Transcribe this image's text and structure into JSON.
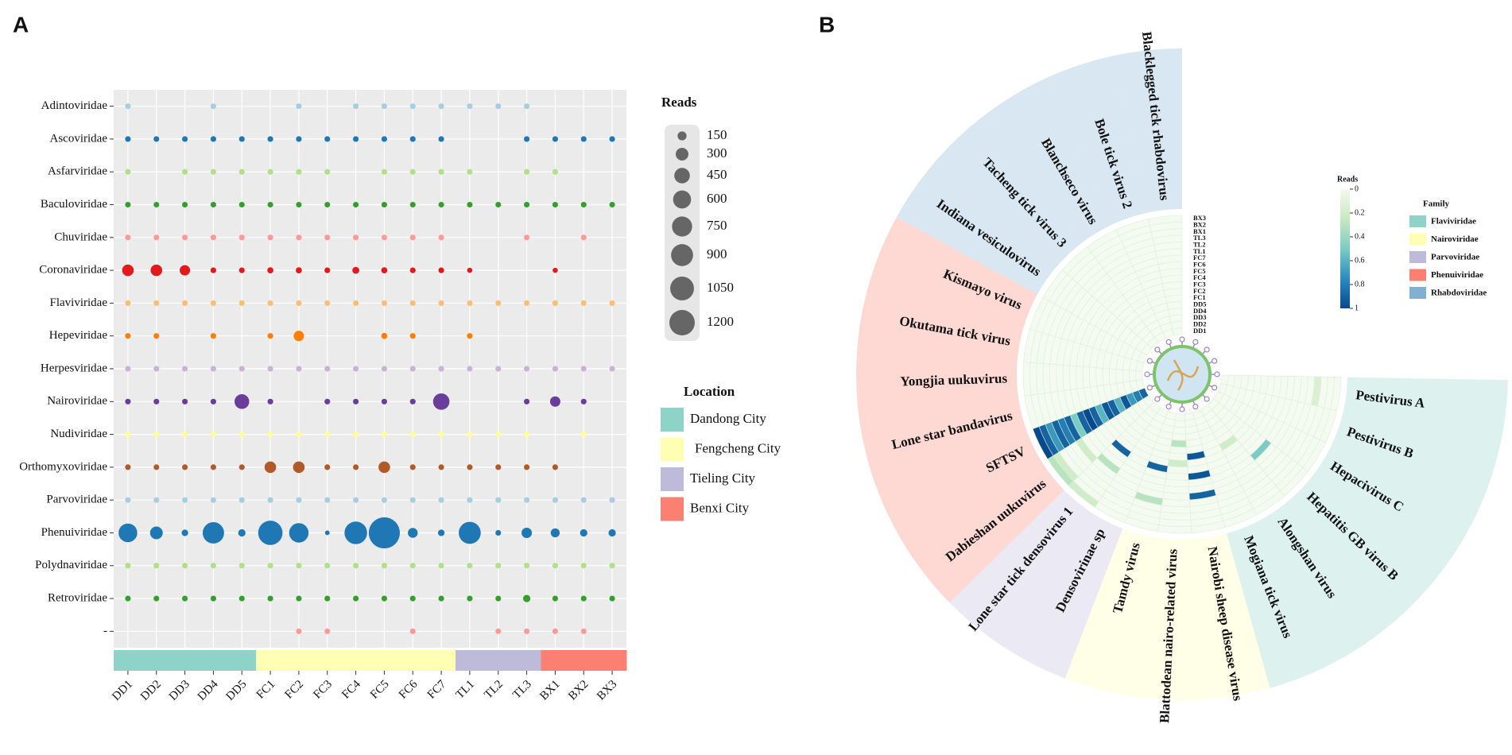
{
  "chart_data": [
    {
      "type": "bubble",
      "panel": "A",
      "y_categories": [
        "Adintoviridae",
        "Ascoviridae",
        "Asfarviridae",
        "Baculoviridae",
        "Chuviridae",
        "Coronaviridae",
        "Flaviviridae",
        "Hepeviridae",
        "Herpesviridae",
        "Nairoviridae",
        "Nudiviridae",
        "Orthomyxoviridae",
        "Parvoviridae",
        "Phenuiviridae",
        "Polydnaviridae",
        "Retroviridae",
        "-"
      ],
      "x_categories": [
        "DD1",
        "DD2",
        "DD3",
        "DD4",
        "DD5",
        "FC1",
        "FC2",
        "FC3",
        "FC4",
        "FC5",
        "FC6",
        "FC7",
        "TL1",
        "TL2",
        "TL3",
        "BX1",
        "BX2",
        "BX3"
      ],
      "colors": [
        "#a6cee3",
        "#1f78b4",
        "#b2df8a",
        "#33a02c",
        "#fb9a99",
        "#e31a1c",
        "#fdbf6f",
        "#ff7f00",
        "#cab2d6",
        "#6a3d9a",
        "#ffff99",
        "#b15928",
        "#a6cee3",
        "#1f78b4",
        "#b2df8a",
        "#33a02c",
        "#fb9a99"
      ],
      "values": [
        [
          60,
          null,
          null,
          60,
          null,
          null,
          60,
          null,
          60,
          60,
          60,
          60,
          60,
          60,
          60,
          null,
          null,
          null
        ],
        [
          60,
          60,
          60,
          60,
          60,
          60,
          60,
          60,
          60,
          60,
          60,
          60,
          null,
          null,
          60,
          60,
          60,
          60
        ],
        [
          60,
          null,
          60,
          60,
          60,
          60,
          60,
          60,
          null,
          60,
          60,
          60,
          60,
          null,
          60,
          60,
          null,
          null
        ],
        [
          60,
          60,
          60,
          60,
          60,
          60,
          60,
          60,
          60,
          60,
          60,
          60,
          60,
          60,
          60,
          60,
          60,
          60
        ],
        [
          60,
          60,
          60,
          60,
          60,
          60,
          60,
          60,
          60,
          60,
          60,
          60,
          null,
          null,
          60,
          null,
          60,
          null
        ],
        [
          250,
          250,
          200,
          60,
          60,
          70,
          70,
          60,
          90,
          70,
          60,
          60,
          50,
          null,
          null,
          50,
          null,
          null
        ],
        [
          60,
          60,
          60,
          60,
          60,
          60,
          60,
          60,
          60,
          60,
          60,
          60,
          60,
          60,
          60,
          60,
          60,
          60
        ],
        [
          60,
          60,
          null,
          60,
          null,
          60,
          200,
          null,
          null,
          70,
          60,
          null,
          60,
          null,
          null,
          null,
          null,
          null
        ],
        [
          60,
          60,
          60,
          60,
          60,
          60,
          60,
          60,
          60,
          60,
          60,
          60,
          60,
          60,
          60,
          60,
          60,
          60
        ],
        [
          60,
          60,
          60,
          60,
          400,
          60,
          null,
          60,
          60,
          60,
          60,
          500,
          null,
          null,
          60,
          200,
          60,
          null
        ],
        [
          60,
          60,
          60,
          60,
          60,
          60,
          60,
          60,
          60,
          60,
          60,
          60,
          60,
          60,
          60,
          null,
          60,
          null
        ],
        [
          60,
          60,
          60,
          60,
          60,
          250,
          250,
          60,
          60,
          250,
          60,
          60,
          60,
          60,
          60,
          60,
          null,
          null
        ],
        [
          60,
          60,
          60,
          60,
          60,
          60,
          60,
          60,
          60,
          60,
          60,
          60,
          60,
          60,
          60,
          60,
          60,
          60
        ],
        [
          650,
          300,
          80,
          850,
          100,
          1100,
          700,
          40,
          950,
          1800,
          180,
          80,
          900,
          60,
          200,
          150,
          100,
          100
        ],
        [
          60,
          60,
          60,
          60,
          60,
          60,
          60,
          60,
          60,
          60,
          60,
          60,
          60,
          60,
          60,
          60,
          60,
          60
        ],
        [
          60,
          60,
          60,
          60,
          60,
          60,
          60,
          60,
          60,
          60,
          60,
          60,
          60,
          60,
          100,
          60,
          60,
          60
        ],
        [
          null,
          null,
          null,
          null,
          null,
          null,
          60,
          60,
          null,
          null,
          60,
          null,
          null,
          60,
          60,
          60,
          60,
          null
        ]
      ],
      "size_legend_title": "Reads",
      "size_legend": [
        150,
        300,
        450,
        600,
        750,
        900,
        1050,
        1200
      ],
      "size_legend_color": "#666666",
      "location_title": "Location",
      "locations": [
        {
          "name": "Dandong City",
          "color": "#8dd3c7"
        },
        {
          "name": "Fengcheng City",
          "color": "#ffffb3"
        },
        {
          "name": "Tieling City",
          "color": "#bebada"
        },
        {
          "name": "Benxi City",
          "color": "#fb8072"
        }
      ],
      "sample_locations": [
        "Dandong City",
        "Dandong City",
        "Dandong City",
        "Dandong City",
        "Dandong City",
        "Fengcheng City",
        "Fengcheng City",
        "Fengcheng City",
        "Fengcheng City",
        "Fengcheng City",
        "Fengcheng City",
        "Fengcheng City",
        "Tieling City",
        "Tieling City",
        "Tieling City",
        "Benxi City",
        "Benxi City",
        "Benxi City"
      ]
    },
    {
      "type": "circular_heatmap",
      "panel": "B",
      "samples": [
        "DD1",
        "DD2",
        "DD3",
        "DD4",
        "DD5",
        "FC1",
        "FC2",
        "FC3",
        "FC4",
        "FC5",
        "FC6",
        "FC7",
        "TL1",
        "TL2",
        "TL3",
        "BX1",
        "BX2",
        "BX3"
      ],
      "families": [
        {
          "name": "Flaviviridae",
          "color": "#8dd3c7"
        },
        {
          "name": "Nairoviridae",
          "color": "#ffffb3"
        },
        {
          "name": "Parvoviridae",
          "color": "#bebada"
        },
        {
          "name": "Phenuiviridae",
          "color": "#fb8072"
        },
        {
          "name": "Rhabdoviridae",
          "color": "#80b1d3"
        }
      ],
      "family_title": "Family",
      "viruses": [
        {
          "name": "Pestivirus A",
          "family": "Flaviviridae",
          "values": [
            0,
            0,
            0,
            0,
            0,
            0,
            0,
            0,
            0,
            0,
            0,
            0,
            0,
            0,
            0.15,
            0,
            0,
            0
          ]
        },
        {
          "name": "Pestivirus B",
          "family": "Flaviviridae",
          "values": [
            0,
            0,
            0,
            0,
            0,
            0,
            0,
            0,
            0,
            0,
            0,
            0,
            0,
            0,
            0,
            0,
            0,
            0
          ]
        },
        {
          "name": "Hepacivirus C",
          "family": "Flaviviridae",
          "values": [
            0,
            0,
            0,
            0,
            0,
            0,
            0,
            0,
            0,
            0,
            0,
            0,
            0,
            0,
            0,
            0,
            0,
            0
          ]
        },
        {
          "name": "Hepatitis GB virus B",
          "family": "Flaviviridae",
          "values": [
            0,
            0,
            0,
            0,
            0,
            0,
            0,
            0,
            0,
            0,
            0.5,
            0,
            0,
            0,
            0,
            0,
            0,
            0
          ]
        },
        {
          "name": "Alongshan virus",
          "family": "Flaviviridae",
          "values": [
            0,
            0,
            0,
            0,
            0,
            0,
            0.2,
            0,
            0,
            0,
            0,
            0,
            0,
            0,
            0,
            0,
            0,
            0
          ]
        },
        {
          "name": "Mogiana tick virus",
          "family": "Flaviviridae",
          "values": [
            0,
            0,
            0,
            0,
            0,
            0,
            0,
            0,
            0,
            0,
            0,
            0,
            0,
            0,
            0,
            0,
            0,
            0
          ]
        },
        {
          "name": "Nairobi sheep disease virus",
          "family": "Nairoviridae",
          "values": [
            0,
            0,
            0,
            0,
            0,
            0,
            0.95,
            0,
            0,
            0.95,
            0,
            0,
            0.9,
            0,
            0,
            0,
            0,
            0
          ]
        },
        {
          "name": "Blattodean nairo-related virus",
          "family": "Nairoviridae",
          "values": [
            0,
            0,
            0,
            0,
            0.3,
            0,
            0,
            0.2,
            0,
            0,
            0,
            0,
            0,
            0,
            0,
            0,
            0,
            0
          ]
        },
        {
          "name": "Tamdy virus",
          "family": "Nairoviridae",
          "values": [
            0,
            0,
            0,
            0,
            0,
            0,
            0,
            0,
            0.9,
            0,
            0,
            0,
            0,
            0.3,
            0,
            0,
            0,
            0
          ]
        },
        {
          "name": "Densovirinae sp",
          "family": "Parvoviridae",
          "values": [
            0,
            0,
            0,
            0,
            0,
            0,
            0,
            0,
            0,
            0,
            0,
            0,
            0,
            0,
            0,
            0,
            0,
            0
          ]
        },
        {
          "name": "Lone star tick densovirus 1",
          "family": "Parvoviridae",
          "values": [
            0,
            0,
            0,
            0,
            0,
            0,
            0,
            0,
            0.9,
            0,
            0,
            0.3,
            0,
            0,
            0,
            0,
            0,
            0.2
          ]
        },
        {
          "name": "Dabieshan uukuvirus",
          "family": "Phenuiviridae",
          "values": [
            0,
            0,
            0,
            0,
            0,
            0,
            0,
            0,
            0,
            0,
            0,
            0,
            0.2,
            0,
            0,
            0,
            0.2,
            0.3
          ]
        },
        {
          "name": "SFTSV",
          "family": "Phenuiviridae",
          "values": [
            0.9,
            0.8,
            0.7,
            0.95,
            0.6,
            0.9,
            0.95,
            0.6,
            0.9,
            1,
            0.9,
            0.5,
            0.9,
            0.8,
            0.9,
            0.7,
            0.9,
            1
          ]
        },
        {
          "name": "Lone star bandavirus",
          "family": "Phenuiviridae",
          "values": [
            0,
            0,
            0,
            0,
            0,
            0,
            0,
            0,
            0,
            0,
            0,
            0,
            0,
            0,
            0,
            0,
            0,
            0
          ]
        },
        {
          "name": "Yongjia uukuvirus",
          "family": "Phenuiviridae",
          "values": [
            0,
            0,
            0,
            0,
            0,
            0,
            0,
            0,
            0,
            0,
            0,
            0,
            0,
            0,
            0,
            0,
            0,
            0
          ]
        },
        {
          "name": "Okutama tick virus",
          "family": "Phenuiviridae",
          "values": [
            0,
            0,
            0,
            0,
            0,
            0,
            0,
            0,
            0,
            0,
            0,
            0,
            0,
            0,
            0,
            0,
            0,
            0
          ]
        },
        {
          "name": "Kismayo virus",
          "family": "Phenuiviridae",
          "values": [
            0,
            0,
            0,
            0,
            0,
            0,
            0,
            0,
            0,
            0,
            0,
            0,
            0,
            0,
            0,
            0,
            0,
            0
          ]
        },
        {
          "name": "Indiana vesiculovirus",
          "family": "Rhabdoviridae",
          "values": [
            0,
            0,
            0,
            0,
            0,
            0,
            0,
            0,
            0,
            0,
            0,
            0,
            0,
            0,
            0,
            0,
            0,
            0
          ]
        },
        {
          "name": "Tacheng tick virus 3",
          "family": "Rhabdoviridae",
          "values": [
            0,
            0,
            0,
            0,
            0,
            0,
            0,
            0,
            0,
            0,
            0,
            0,
            0,
            0,
            0,
            0,
            0,
            0
          ]
        },
        {
          "name": "Blanchseco virus",
          "family": "Rhabdoviridae",
          "values": [
            0,
            0,
            0,
            0,
            0,
            0,
            0,
            0,
            0,
            0,
            0,
            0,
            0,
            0,
            0,
            0,
            0,
            0
          ]
        },
        {
          "name": "Bole tick virus 2",
          "family": "Rhabdoviridae",
          "values": [
            0,
            0,
            0,
            0,
            0,
            0,
            0,
            0,
            0,
            0,
            0,
            0,
            0,
            0,
            0,
            0,
            0,
            0
          ]
        },
        {
          "name": "Blacklegged tick rhabdovirus",
          "family": "Rhabdoviridae",
          "values": [
            0,
            0,
            0,
            0,
            0,
            0,
            0,
            0,
            0,
            0,
            0,
            0,
            0,
            0,
            0,
            0,
            0,
            0
          ]
        }
      ],
      "colorbar_title": "Reads",
      "clim": [
        0,
        1
      ],
      "colorbar_ticks": [
        0,
        0.2,
        0.4,
        0.6,
        0.8,
        1
      ],
      "colormap": [
        "#f4faef",
        "#c7e9c0",
        "#7bccc4",
        "#2b8cbe",
        "#08488e"
      ]
    }
  ]
}
